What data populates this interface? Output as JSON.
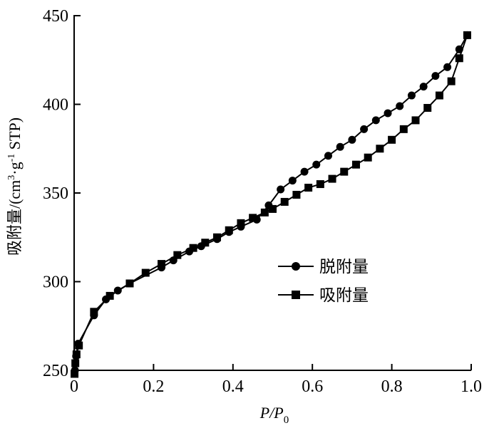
{
  "chart_data": {
    "type": "line",
    "xlabel": {
      "main": "P/P",
      "sub": "0"
    },
    "ylabel": {
      "prefix": "吸附量/(cm",
      "sup1": "3",
      "mid": "·g",
      "sup2": "-1",
      "suffix": " STP)"
    },
    "xlim": [
      0,
      1.0
    ],
    "ylim": [
      250,
      450
    ],
    "xticks": [
      "0",
      "0.2",
      "0.4",
      "0.6",
      "0.8",
      "1.0"
    ],
    "xtick_values": [
      0,
      0.2,
      0.4,
      0.6,
      0.8,
      1.0
    ],
    "yticks": [
      "250",
      "300",
      "350",
      "400",
      "450"
    ],
    "ytick_values": [
      250,
      300,
      350,
      400,
      450
    ],
    "legend_position": "right-middle",
    "series": [
      {
        "name": "脱附量",
        "marker": "circle",
        "x": [
          0.002,
          0.005,
          0.01,
          0.05,
          0.08,
          0.11,
          0.14,
          0.22,
          0.25,
          0.29,
          0.32,
          0.36,
          0.39,
          0.42,
          0.46,
          0.49,
          0.52,
          0.55,
          0.58,
          0.61,
          0.64,
          0.67,
          0.7,
          0.73,
          0.76,
          0.79,
          0.82,
          0.85,
          0.88,
          0.91,
          0.94,
          0.97,
          0.99
        ],
        "y": [
          250,
          258,
          265,
          281,
          290,
          295,
          299,
          308,
          312,
          317,
          320,
          324,
          328,
          331,
          335,
          343,
          352,
          357,
          362,
          366,
          371,
          376,
          380,
          386,
          391,
          395,
          399,
          405,
          410,
          416,
          421,
          431,
          439
        ]
      },
      {
        "name": "吸附量",
        "marker": "square",
        "x": [
          0.001,
          0.003,
          0.006,
          0.012,
          0.05,
          0.09,
          0.14,
          0.18,
          0.22,
          0.26,
          0.3,
          0.33,
          0.36,
          0.39,
          0.42,
          0.45,
          0.48,
          0.5,
          0.53,
          0.56,
          0.59,
          0.62,
          0.65,
          0.68,
          0.71,
          0.74,
          0.77,
          0.8,
          0.83,
          0.86,
          0.89,
          0.92,
          0.95,
          0.97,
          0.99
        ],
        "y": [
          248,
          254,
          259,
          264,
          283,
          292,
          299,
          305,
          310,
          315,
          319,
          322,
          325,
          329,
          333,
          336,
          339,
          341,
          345,
          349,
          353,
          355,
          358,
          362,
          366,
          370,
          375,
          380,
          386,
          391,
          398,
          405,
          413,
          426,
          439
        ]
      }
    ]
  }
}
